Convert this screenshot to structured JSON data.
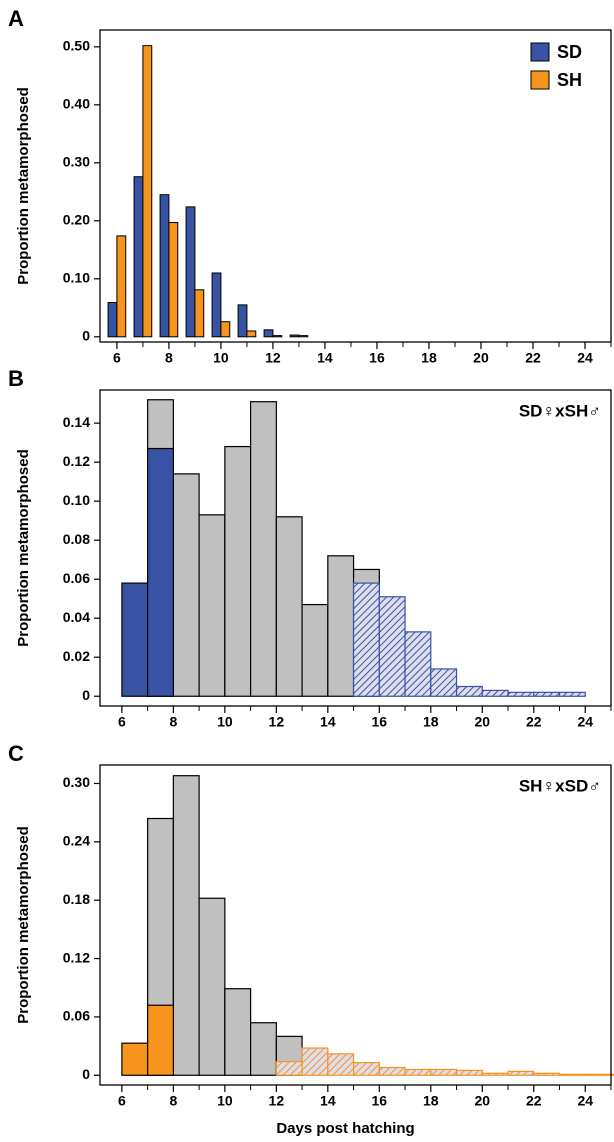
{
  "chart_data": [
    {
      "type": "bar",
      "panel": "A",
      "ylabel": "Proportion metamorphosed",
      "legend": "upper right",
      "x": [
        6,
        7,
        8,
        9,
        10,
        11,
        12,
        13
      ],
      "series": [
        {
          "name": "SD",
          "color": "#3953a4",
          "values": [
            0.059,
            0.276,
            0.245,
            0.224,
            0.11,
            0.055,
            0.012,
            0.003
          ]
        },
        {
          "name": "SH",
          "color": "#f7941d",
          "values": [
            0.174,
            0.502,
            0.197,
            0.081,
            0.026,
            0.01,
            0.002,
            0.002
          ]
        }
      ],
      "xlim": [
        5.35,
        25
      ],
      "xticks": [
        6,
        8,
        10,
        12,
        14,
        16,
        18,
        20,
        22,
        24
      ],
      "xminorticks": [
        7,
        9,
        11,
        13,
        15,
        17,
        19,
        21,
        23,
        25
      ],
      "ylim": [
        -0.009,
        0.529
      ],
      "yticks": [
        0,
        {
          "value": 0.1,
          "label": "0.10"
        },
        {
          "value": 0.2,
          "label": "0.20"
        },
        {
          "value": 0.3,
          "label": "0.30"
        },
        {
          "value": 0.4,
          "label": "0.40"
        },
        {
          "value": 0.5,
          "label": "0.50"
        }
      ]
    },
    {
      "type": "histogram",
      "panel": "B",
      "ylabel": "Proportion metamorphosed",
      "annotation": "SD♀xSH♂",
      "x": [
        6,
        7,
        8,
        9,
        10,
        11,
        12,
        13,
        14,
        15,
        16,
        17,
        18,
        19,
        20,
        21,
        22,
        23
      ],
      "series": [
        {
          "color": "#c0c0c0",
          "hatch": false,
          "values": [
            null,
            0.152,
            0.114,
            0.093,
            0.128,
            0.151,
            0.092,
            0.047,
            0.072,
            0.065,
            null,
            null,
            null,
            null,
            null,
            null,
            null,
            null
          ]
        },
        {
          "color": "#3953a4",
          "hatch": false,
          "values": [
            0.058,
            0.127,
            null,
            null,
            null,
            null,
            null,
            null,
            null,
            null,
            null,
            null,
            null,
            null,
            null,
            null,
            null,
            null
          ]
        },
        {
          "color": "#3953a4",
          "hatch": true,
          "values": [
            null,
            null,
            null,
            null,
            null,
            null,
            null,
            null,
            null,
            0.058,
            0.051,
            0.033,
            0.014,
            0.005,
            0.003,
            0.002,
            0.002,
            0.002
          ]
        }
      ],
      "xlim": [
        5.15,
        25
      ],
      "xticks": [
        6,
        8,
        10,
        12,
        14,
        16,
        18,
        20,
        22,
        24
      ],
      "xminorticks": [
        7,
        9,
        11,
        13,
        15,
        17,
        19,
        21,
        23,
        25
      ],
      "ylim": [
        -0.005,
        0.157
      ],
      "yticks": [
        0,
        {
          "value": 0.02,
          "label": "0.02"
        },
        {
          "value": 0.04,
          "label": "0.04"
        },
        {
          "value": 0.06,
          "label": "0.06"
        },
        {
          "value": 0.08,
          "label": "0.08"
        },
        {
          "value": 0.1,
          "label": "0.10"
        },
        {
          "value": 0.12,
          "label": "0.12"
        },
        {
          "value": 0.14,
          "label": "0.14"
        }
      ]
    },
    {
      "type": "histogram",
      "panel": "C",
      "ylabel": "Proportion metamorphosed",
      "xlabel": "Days post hatching",
      "annotation": "SH♀xSD♂",
      "x": [
        6,
        7,
        8,
        9,
        10,
        11,
        12,
        13,
        14,
        15,
        16,
        17,
        18,
        19,
        20,
        21,
        22,
        23,
        24,
        25
      ],
      "series": [
        {
          "color": "#c0c0c0",
          "hatch": false,
          "values": [
            null,
            0.264,
            0.308,
            0.182,
            0.089,
            0.054,
            0.04,
            null,
            null,
            null,
            null,
            null,
            null,
            null,
            null,
            null,
            null,
            null,
            null,
            null
          ]
        },
        {
          "color": "#f7941d",
          "hatch": false,
          "values": [
            0.033,
            0.072,
            null,
            null,
            null,
            null,
            null,
            null,
            null,
            null,
            null,
            null,
            null,
            null,
            null,
            null,
            null,
            null,
            null,
            null
          ]
        },
        {
          "color": "#f7941d",
          "hatch": true,
          "values": [
            null,
            null,
            null,
            null,
            null,
            null,
            0.014,
            0.028,
            0.022,
            0.013,
            0.008,
            0.006,
            0.006,
            0.005,
            0.002,
            0.004,
            0.002,
            0.001,
            0.001,
            0.001
          ]
        }
      ],
      "xlim": [
        5.15,
        25
      ],
      "xticks": [
        6,
        8,
        10,
        12,
        14,
        16,
        18,
        20,
        22,
        24
      ],
      "xminorticks": [
        7,
        9,
        11,
        13,
        15,
        17,
        19,
        21,
        23,
        25
      ],
      "ylim": [
        -0.01,
        0.319
      ],
      "yticks": [
        0,
        {
          "value": 0.06,
          "label": "0.06"
        },
        {
          "value": 0.12,
          "label": "0.12"
        },
        {
          "value": 0.18,
          "label": "0.18"
        },
        {
          "value": 0.24,
          "label": "0.24"
        },
        {
          "value": 0.3,
          "label": "0.30"
        }
      ]
    }
  ]
}
